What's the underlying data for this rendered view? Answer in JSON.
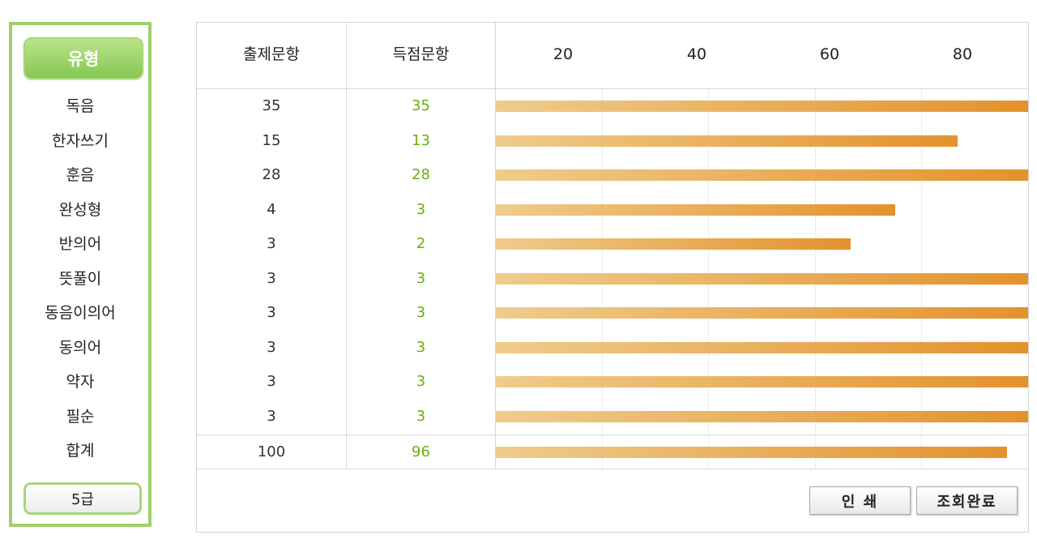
{
  "sidebar": {
    "title": "유형",
    "items": [
      "독음",
      "한자쓰기",
      "훈음",
      "완성형",
      "반의어",
      "뜻풀이",
      "동음이의어",
      "동의어",
      "약자",
      "필순",
      "합계"
    ],
    "grade": "5급"
  },
  "table": {
    "headers": {
      "asked": "출제문항",
      "scored": "득점문항"
    },
    "axis_ticks": [
      "20",
      "40",
      "60",
      "80"
    ],
    "rows": [
      {
        "asked": "35",
        "scored": "35",
        "percent": 100
      },
      {
        "asked": "15",
        "scored": "13",
        "percent": 86.7
      },
      {
        "asked": "28",
        "scored": "28",
        "percent": 100
      },
      {
        "asked": "4",
        "scored": "3",
        "percent": 75
      },
      {
        "asked": "3",
        "scored": "2",
        "percent": 66.7
      },
      {
        "asked": "3",
        "scored": "3",
        "percent": 100
      },
      {
        "asked": "3",
        "scored": "3",
        "percent": 100
      },
      {
        "asked": "3",
        "scored": "3",
        "percent": 100
      },
      {
        "asked": "3",
        "scored": "3",
        "percent": 100
      },
      {
        "asked": "3",
        "scored": "3",
        "percent": 100
      }
    ],
    "total": {
      "asked": "100",
      "scored": "96",
      "percent": 96
    }
  },
  "buttons": {
    "print": "인 쇄",
    "done": "조회완료"
  },
  "colors": {
    "green": "#9fcf6a",
    "score_text": "#6aae12",
    "bar_start": "#efcc8c",
    "bar_end": "#e3922c"
  }
}
